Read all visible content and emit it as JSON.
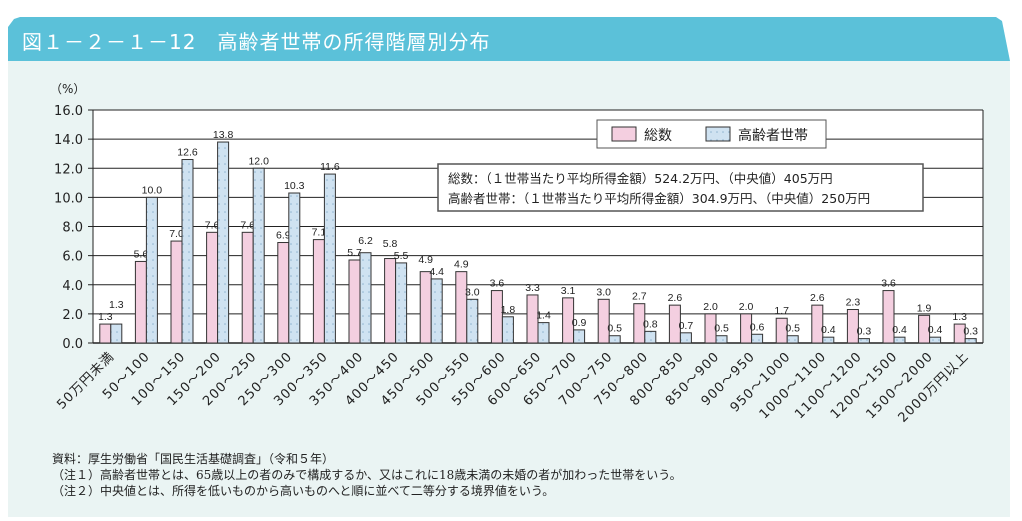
{
  "title": "図１－２－１－12　高齢者世帯の所得階層別分布",
  "chart_data": {
    "type": "bar",
    "ylabel": "（%）",
    "ylim": [
      0,
      16
    ],
    "yticks": [
      "0.0",
      "2.0",
      "4.0",
      "6.0",
      "8.0",
      "10.0",
      "12.0",
      "14.0",
      "16.0"
    ],
    "grid": true,
    "legend_position": "top-right",
    "categories": [
      "50万円未満",
      "50～100",
      "100～150",
      "150～200",
      "200～250",
      "250～300",
      "300～350",
      "350～400",
      "400～450",
      "450～500",
      "500～550",
      "550～600",
      "600～650",
      "650～700",
      "700～750",
      "750～800",
      "800～850",
      "850～900",
      "900～950",
      "950～1000",
      "1000～1100",
      "1100～1200",
      "1200～1500",
      "1500～2000",
      "2000万円以上"
    ],
    "series": [
      {
        "name": "総数",
        "color": "#f4cfe0",
        "values": [
          1.3,
          5.6,
          7.0,
          7.6,
          7.6,
          6.9,
          7.1,
          5.7,
          5.8,
          4.9,
          4.9,
          3.6,
          3.3,
          3.1,
          3.0,
          2.7,
          2.6,
          2.0,
          2.0,
          1.7,
          2.6,
          2.3,
          3.6,
          1.9,
          1.3
        ]
      },
      {
        "name": "高齢者世帯",
        "color": "#cfe2f1",
        "values": [
          1.3,
          10.0,
          12.6,
          13.8,
          12.0,
          10.3,
          11.6,
          6.2,
          5.5,
          4.4,
          3.0,
          1.8,
          1.4,
          0.9,
          0.5,
          0.8,
          0.7,
          0.5,
          0.6,
          0.5,
          0.4,
          0.3,
          0.4,
          0.4,
          0.3
        ]
      }
    ],
    "annotations": [
      "総数：（１世帯当たり平均所得金額）524.2万円、（中央値）405万円",
      "高齢者世帯：（１世帯当たり平均所得金額）304.9万円、（中央値）250万円"
    ]
  },
  "notes": [
    "資料：厚生労働省「国民生活基礎調査」（令和５年）",
    "（注１）高齢者世帯とは、65歳以上の者のみで構成するか、又はこれに18歳未満の未婚の者が加わった世帯をいう。",
    "（注２）中央値とは、所得を低いものから高いものへと順に並べて二等分する境界値をいう。"
  ]
}
